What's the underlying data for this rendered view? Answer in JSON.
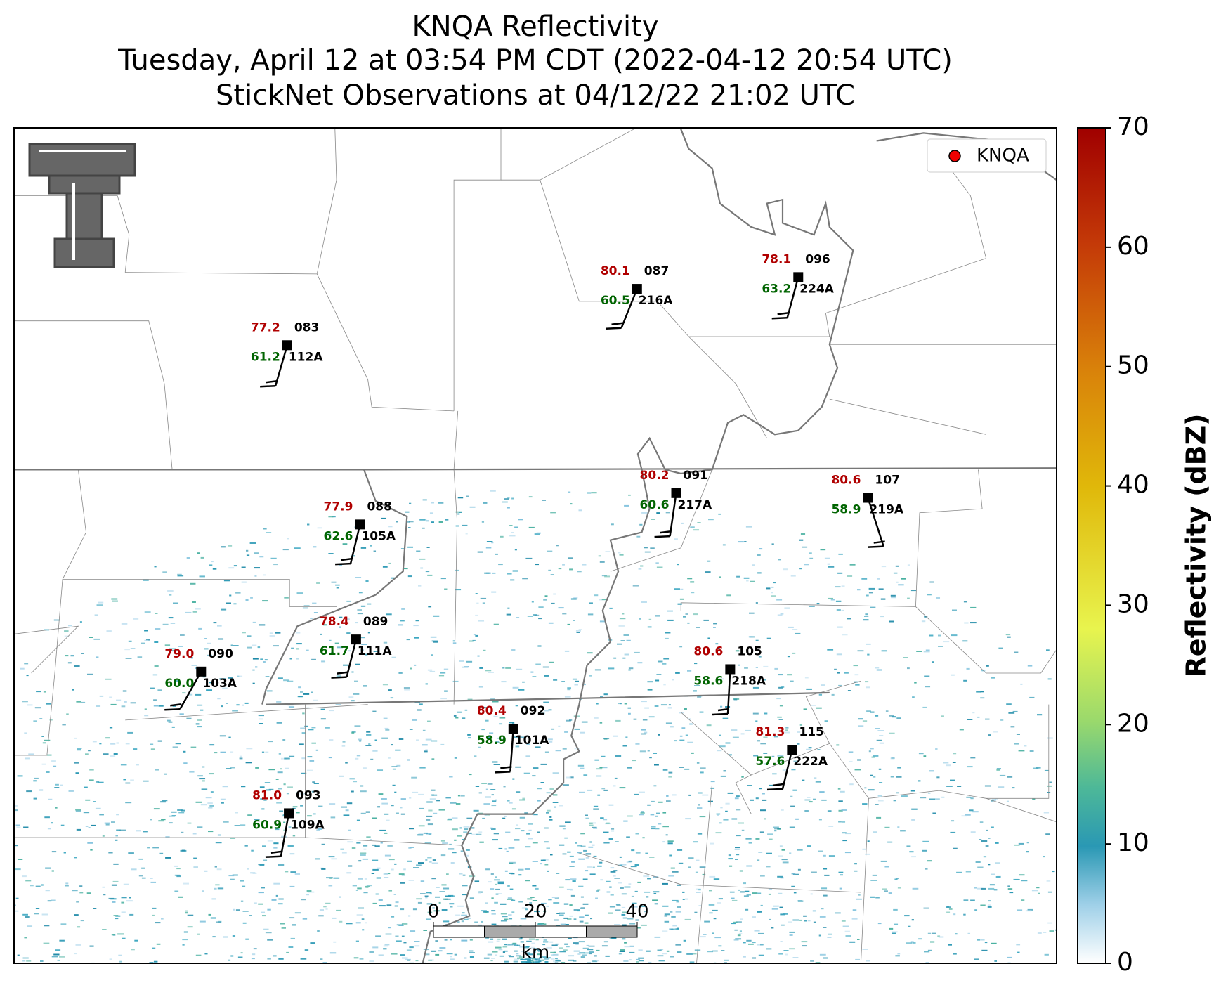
{
  "header": {
    "title": [
      "KNQA Reflectivity",
      "Tuesday, April 12 at 03:54 PM CDT (2022-04-12 20:54 UTC)",
      "StickNet Observations at 04/12/22 21:02 UTC"
    ]
  },
  "legend": {
    "label": "KNQA"
  },
  "colorbar": {
    "label": "Reflectivity (dBZ)",
    "lim": [
      0,
      70
    ],
    "ticks": [
      0,
      10,
      20,
      30,
      40,
      50,
      60,
      70
    ]
  },
  "scale_bar": {
    "lim": [
      0,
      40
    ],
    "ticks": [
      0,
      20,
      40
    ],
    "unit": "km"
  },
  "stations": [
    {
      "temp": "77.2",
      "id": "083",
      "dewpoint": "61.2",
      "probe": "112A"
    },
    {
      "temp": "80.1",
      "id": "087",
      "dewpoint": "60.5",
      "probe": "216A"
    },
    {
      "temp": "78.1",
      "id": "096",
      "dewpoint": "63.2",
      "probe": "224A"
    },
    {
      "temp": "77.9",
      "id": "088",
      "dewpoint": "62.6",
      "probe": "105A"
    },
    {
      "temp": "80.2",
      "id": "091",
      "dewpoint": "60.6",
      "probe": "217A"
    },
    {
      "temp": "80.6",
      "id": "107",
      "dewpoint": "58.9",
      "probe": "219A"
    },
    {
      "temp": "78.4",
      "id": "089",
      "dewpoint": "61.7",
      "probe": "111A"
    },
    {
      "temp": "79.0",
      "id": "090",
      "dewpoint": "60.0",
      "probe": "103A"
    },
    {
      "temp": "80.6",
      "id": "105",
      "dewpoint": "58.6",
      "probe": "218A"
    },
    {
      "temp": "80.4",
      "id": "092",
      "dewpoint": "58.9",
      "probe": "101A"
    },
    {
      "temp": "81.3",
      "id": "115",
      "dewpoint": "57.6",
      "probe": "222A"
    },
    {
      "temp": "81.0",
      "id": "093",
      "dewpoint": "60.9",
      "probe": "109A"
    }
  ]
}
